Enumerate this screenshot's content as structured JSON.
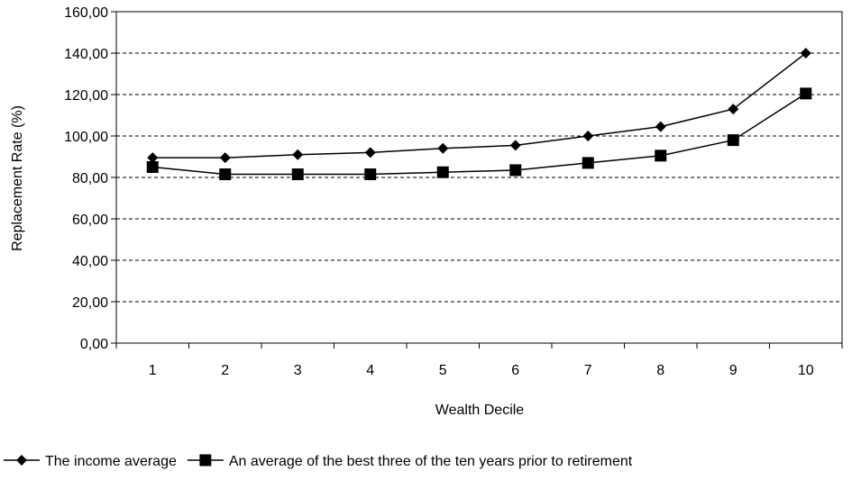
{
  "chart_data": {
    "type": "line",
    "title": "",
    "xlabel": "Wealth Decile",
    "ylabel": "Replacement Rate (%)",
    "categories": [
      "1",
      "2",
      "3",
      "4",
      "5",
      "6",
      "7",
      "8",
      "9",
      "10"
    ],
    "y_ticks": [
      "0,00",
      "20,00",
      "40,00",
      "60,00",
      "80,00",
      "100,00",
      "120,00",
      "140,00",
      "160,00"
    ],
    "ylim": [
      0,
      160
    ],
    "grid": "horizontal dashed",
    "legend_position": "bottom",
    "series": [
      {
        "name": "The income average",
        "marker": "diamond",
        "color": "#000000",
        "values": [
          89.5,
          89.5,
          91.0,
          92.0,
          94.0,
          95.5,
          100.0,
          104.5,
          113.0,
          140.0
        ]
      },
      {
        "name": "An average of the best three of the ten years prior to retirement",
        "marker": "square",
        "color": "#000000",
        "values": [
          85.0,
          81.5,
          81.5,
          81.5,
          82.5,
          83.5,
          87.0,
          90.5,
          98.0,
          120.5
        ]
      }
    ]
  }
}
